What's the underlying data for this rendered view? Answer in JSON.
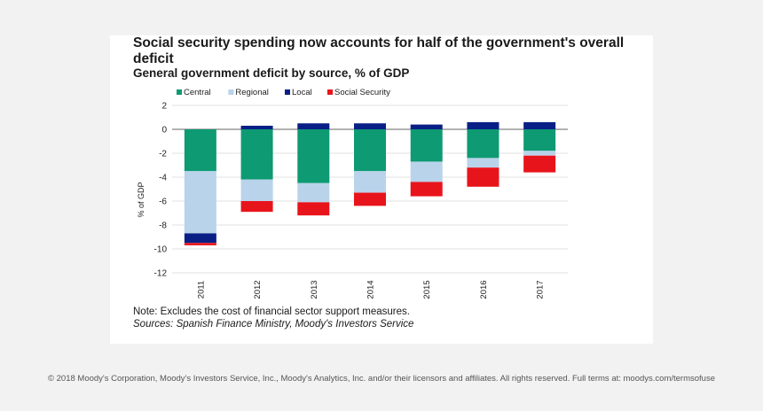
{
  "title": "Social security spending now accounts for half of the government's overall deficit",
  "subtitle": "General government deficit by source, % of GDP",
  "note": "Note: Excludes the cost of financial sector support measures.",
  "source": "Sources: Spanish Finance Ministry, Moody's Investors Service",
  "footer": "© 2018 Moody's Corporation, Moody's Investors Service, Inc., Moody's Analytics, Inc. and/or their licensors and affiliates. All rights reserved. Full terms at: moodys.com/termsofuse",
  "colors": {
    "central": "#0e9a72",
    "regional": "#b9d3ea",
    "local": "#0a1f86",
    "social_security": "#e8141b"
  },
  "chart_data": {
    "type": "bar",
    "stacked": true,
    "title": "General government deficit by source, % of GDP",
    "xlabel": "",
    "ylabel": "% of GDP",
    "ylim": [
      -12,
      2
    ],
    "yticks": [
      2,
      0,
      -2,
      -4,
      -6,
      -8,
      -10,
      -12
    ],
    "grid": true,
    "legend": "top",
    "categories": [
      "2011",
      "2012",
      "2013",
      "2014",
      "2015",
      "2016",
      "2017"
    ],
    "series": [
      {
        "name": "Central",
        "key": "central",
        "values": [
          -3.5,
          -4.2,
          -4.5,
          -3.5,
          -2.7,
          -2.4,
          -1.8
        ]
      },
      {
        "name": "Regional",
        "key": "regional",
        "values": [
          -5.2,
          -1.8,
          -1.6,
          -1.8,
          -1.7,
          -0.8,
          -0.4
        ]
      },
      {
        "name": "Local",
        "key": "local",
        "values": [
          -0.8,
          0.3,
          0.5,
          0.5,
          0.4,
          0.6,
          0.6
        ]
      },
      {
        "name": "Social Security",
        "key": "social_security",
        "values": [
          -0.2,
          -0.9,
          -1.1,
          -1.1,
          -1.2,
          -1.6,
          -1.4
        ]
      }
    ]
  }
}
